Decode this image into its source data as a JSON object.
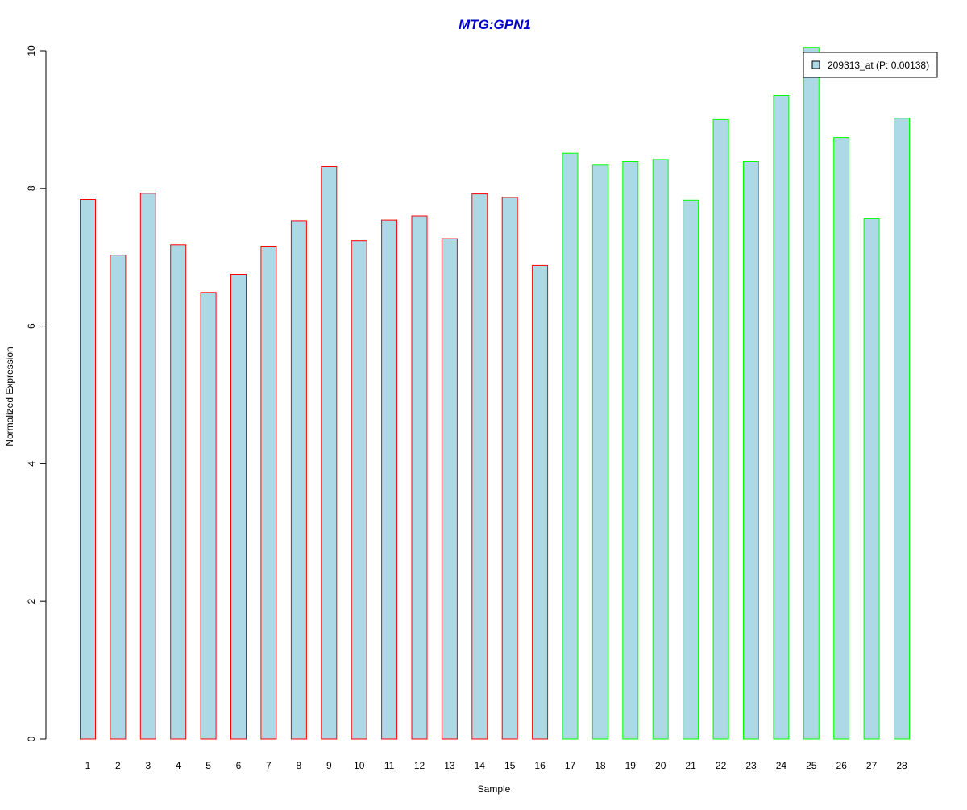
{
  "chart_data": {
    "type": "bar",
    "title": "MTG:GPN1",
    "xlabel": "Sample",
    "ylabel": "Normalized Expression",
    "ylim": [
      0,
      10
    ],
    "yticks": [
      "0",
      "2",
      "4",
      "6",
      "8",
      "10"
    ],
    "categories": [
      "1",
      "2",
      "3",
      "4",
      "5",
      "6",
      "7",
      "8",
      "9",
      "10",
      "11",
      "12",
      "13",
      "14",
      "15",
      "16",
      "17",
      "18",
      "19",
      "20",
      "21",
      "22",
      "23",
      "24",
      "25",
      "26",
      "27",
      "28"
    ],
    "series": [
      {
        "name": "209313_at (P: 0.00138)",
        "values": [
          7.84,
          7.03,
          7.93,
          7.18,
          6.49,
          6.75,
          7.16,
          7.53,
          8.32,
          7.24,
          7.54,
          7.6,
          7.27,
          7.92,
          7.87,
          6.88,
          8.51,
          8.34,
          8.39,
          8.42,
          7.83,
          9.0,
          8.39,
          9.35,
          10.05,
          8.74,
          7.56,
          9.02
        ]
      }
    ],
    "group_of_bar": [
      "a",
      "a",
      "a",
      "a",
      "a",
      "a",
      "a",
      "a",
      "a",
      "a",
      "a",
      "a",
      "a",
      "a",
      "a",
      "a",
      "b",
      "b",
      "b",
      "b",
      "b",
      "b",
      "b",
      "b",
      "b",
      "b",
      "b",
      "b"
    ],
    "legend_position": "top-right",
    "grid": false
  },
  "colors": {
    "bar_fill": "#add8e6",
    "group_a_border": "#ff0000",
    "group_b_border": "#00ff00",
    "title": "#0000cc"
  }
}
